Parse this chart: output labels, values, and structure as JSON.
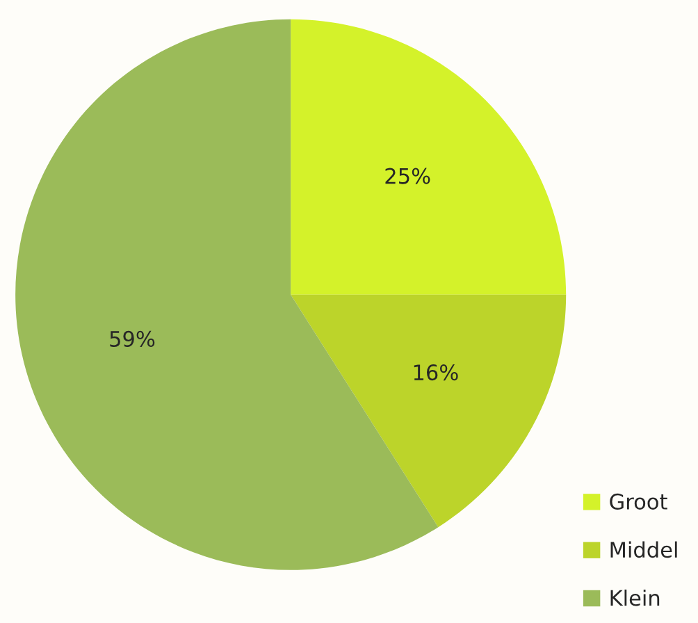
{
  "chart_data": {
    "type": "pie",
    "categories": [
      "Groot",
      "Middel",
      "Klein"
    ],
    "values": [
      25,
      16,
      59
    ],
    "value_labels": [
      "25%",
      "16%",
      "59%"
    ],
    "colors": [
      "#d4f22a",
      "#bcd42a",
      "#9bbb59"
    ],
    "legend": "bottom right"
  }
}
